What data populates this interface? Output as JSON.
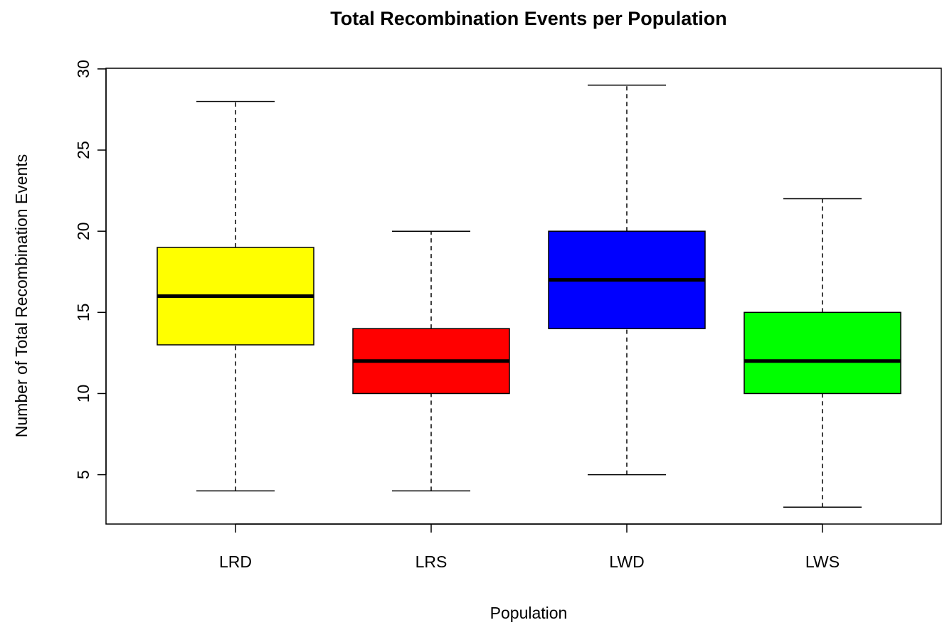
{
  "chart_data": {
    "type": "box",
    "title": "Total Recombination Events per Population",
    "x_label": "Population",
    "y_label": "Number of Total Recombination Events",
    "categories": [
      "LRD",
      "LRS",
      "LWD",
      "LWS"
    ],
    "colors": [
      "#ffff00",
      "#ff0000",
      "#0000ff",
      "#00ff00"
    ],
    "whisker_low": [
      4,
      4,
      5,
      3
    ],
    "q1": [
      13,
      10,
      14,
      10
    ],
    "median": [
      16,
      12,
      17,
      12
    ],
    "q3": [
      19,
      14,
      20,
      15
    ],
    "whisker_high": [
      28,
      20,
      29,
      22
    ],
    "ylim": [
      1.96,
      30.04
    ],
    "yticks": [
      5,
      10,
      15,
      20,
      25,
      30
    ]
  }
}
